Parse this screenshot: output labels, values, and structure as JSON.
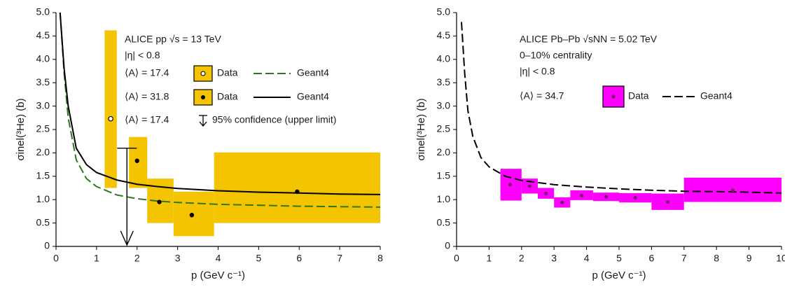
{
  "chart_data": [
    {
      "type": "scatter",
      "panel": "left",
      "xlabel": "p (GeV c⁻¹)",
      "ylabel": "σinel(³He) (b)",
      "xlim": [
        0,
        8
      ],
      "ylim": [
        0,
        5
      ],
      "x_ticks": [
        "0",
        "1",
        "2",
        "3",
        "4",
        "5",
        "6",
        "7",
        "8"
      ],
      "y_ticks": [
        "0",
        "0.5",
        "1.0",
        "1.5",
        "2.0",
        "2.5",
        "3.0",
        "3.5",
        "4.0",
        "4.5",
        "5.0"
      ],
      "annotation_lines": [
        "ALICE pp √s = 13 TeV",
        "|η| < 0.8"
      ],
      "legend": [
        {
          "prefix": "⟨A⟩ = 17.4",
          "marker": "open-circle",
          "label": "Data",
          "line": "dashed-green",
          "line_label": "Geant4"
        },
        {
          "prefix": "⟨A⟩ = 31.8",
          "marker": "filled-circle",
          "label": "Data",
          "line": "solid-black",
          "line_label": "Geant4"
        },
        {
          "prefix": "⟨A⟩ = 17.4",
          "marker": "arrow",
          "label": "95% confidence (upper limit)"
        }
      ],
      "series": [
        {
          "name": "⟨A⟩ = 17.4",
          "marker": "open",
          "color": "#f5c400",
          "points": [
            {
              "x": 1.35,
              "y": 2.73,
              "xlo": 1.2,
              "xhi": 1.5,
              "ylo": 1.25,
              "yhi": 4.62
            }
          ]
        },
        {
          "name": "⟨A⟩ = 31.8",
          "marker": "filled",
          "color": "#f5c400",
          "points": [
            {
              "x": 2.0,
              "y": 1.83,
              "xlo": 1.8,
              "xhi": 2.25,
              "ylo": 1.25,
              "yhi": 2.34
            },
            {
              "x": 2.55,
              "y": 0.95,
              "xlo": 2.25,
              "xhi": 2.9,
              "ylo": 0.5,
              "yhi": 1.45
            },
            {
              "x": 3.35,
              "y": 0.67,
              "xlo": 2.9,
              "xhi": 3.9,
              "ylo": 0.22,
              "yhi": 1.17
            },
            {
              "x": 5.95,
              "y": 1.17,
              "xlo": 3.9,
              "xhi": 8.0,
              "ylo": 0.5,
              "yhi": 2.01
            }
          ]
        }
      ],
      "upper_limit": {
        "x": 1.75,
        "y": 2.1
      },
      "geant4_dashed_green": {
        "color": "#2d7a1e",
        "x": [
          0.1,
          0.2,
          0.3,
          0.5,
          0.75,
          1.0,
          1.5,
          2.0,
          2.5,
          3.0,
          4.0,
          5.0,
          6.0,
          7.0,
          8.0
        ],
        "y": [
          5.0,
          3.7,
          2.75,
          1.85,
          1.45,
          1.28,
          1.1,
          1.02,
          0.97,
          0.94,
          0.9,
          0.88,
          0.86,
          0.85,
          0.84
        ]
      },
      "geant4_solid_black": {
        "color": "#000000",
        "x": [
          0.1,
          0.2,
          0.3,
          0.5,
          0.75,
          1.0,
          1.5,
          2.0,
          2.5,
          3.0,
          4.0,
          5.0,
          6.0,
          7.0,
          8.0
        ],
        "y": [
          5.0,
          3.8,
          3.0,
          2.1,
          1.75,
          1.58,
          1.42,
          1.33,
          1.28,
          1.24,
          1.19,
          1.16,
          1.14,
          1.12,
          1.11
        ]
      }
    },
    {
      "type": "scatter",
      "panel": "right",
      "xlabel": "p (GeV c⁻¹)",
      "ylabel": "σinel(³He) (b)",
      "xlim": [
        0,
        10
      ],
      "ylim": [
        0,
        5
      ],
      "x_ticks": [
        "0",
        "1",
        "2",
        "3",
        "4",
        "5",
        "6",
        "7",
        "8",
        "9",
        "10"
      ],
      "y_ticks": [
        "0",
        "0.5",
        "1.0",
        "1.5",
        "2.0",
        "2.5",
        "3.0",
        "3.5",
        "4.0",
        "4.5",
        "5.0"
      ],
      "annotation_lines": [
        "ALICE Pb–Pb √sNN = 5.02 TeV",
        "0–10% centrality",
        "|η| < 0.8"
      ],
      "legend": [
        {
          "prefix": "⟨A⟩ = 34.7",
          "marker": "magenta-box",
          "label": "Data",
          "line": "dashed-black",
          "line_label": "Geant4"
        }
      ],
      "series": [
        {
          "name": "⟨A⟩ = 34.7",
          "marker": "filled",
          "color": "#ff00ff",
          "points": [
            {
              "x": 1.65,
              "y": 1.32,
              "xlo": 1.35,
              "xhi": 2.0,
              "ylo": 0.98,
              "yhi": 1.66
            },
            {
              "x": 2.25,
              "y": 1.29,
              "xlo": 2.0,
              "xhi": 2.5,
              "ylo": 1.13,
              "yhi": 1.45
            },
            {
              "x": 2.75,
              "y": 1.13,
              "xlo": 2.5,
              "xhi": 3.0,
              "ylo": 1.02,
              "yhi": 1.25
            },
            {
              "x": 3.25,
              "y": 0.94,
              "xlo": 3.0,
              "xhi": 3.5,
              "ylo": 0.83,
              "yhi": 1.05
            },
            {
              "x": 3.85,
              "y": 1.09,
              "xlo": 3.5,
              "xhi": 4.2,
              "ylo": 0.99,
              "yhi": 1.2
            },
            {
              "x": 4.6,
              "y": 1.06,
              "xlo": 4.2,
              "xhi": 5.0,
              "ylo": 0.97,
              "yhi": 1.15
            },
            {
              "x": 5.5,
              "y": 1.04,
              "xlo": 5.0,
              "xhi": 6.0,
              "ylo": 0.94,
              "yhi": 1.14
            },
            {
              "x": 6.5,
              "y": 0.95,
              "xlo": 6.0,
              "xhi": 7.0,
              "ylo": 0.78,
              "yhi": 1.13
            },
            {
              "x": 8.5,
              "y": 1.2,
              "xlo": 7.0,
              "xhi": 10.0,
              "ylo": 0.95,
              "yhi": 1.47
            }
          ]
        }
      ],
      "geant4_dashed_black": {
        "color": "#000000",
        "x": [
          0.15,
          0.25,
          0.35,
          0.5,
          0.75,
          1.0,
          1.5,
          2.0,
          3.0,
          4.0,
          5.0,
          6.0,
          7.0,
          8.0,
          9.0,
          10.0
        ],
        "y": [
          4.8,
          3.7,
          2.9,
          2.35,
          1.9,
          1.7,
          1.5,
          1.41,
          1.32,
          1.27,
          1.23,
          1.2,
          1.18,
          1.17,
          1.16,
          1.14
        ]
      }
    }
  ]
}
